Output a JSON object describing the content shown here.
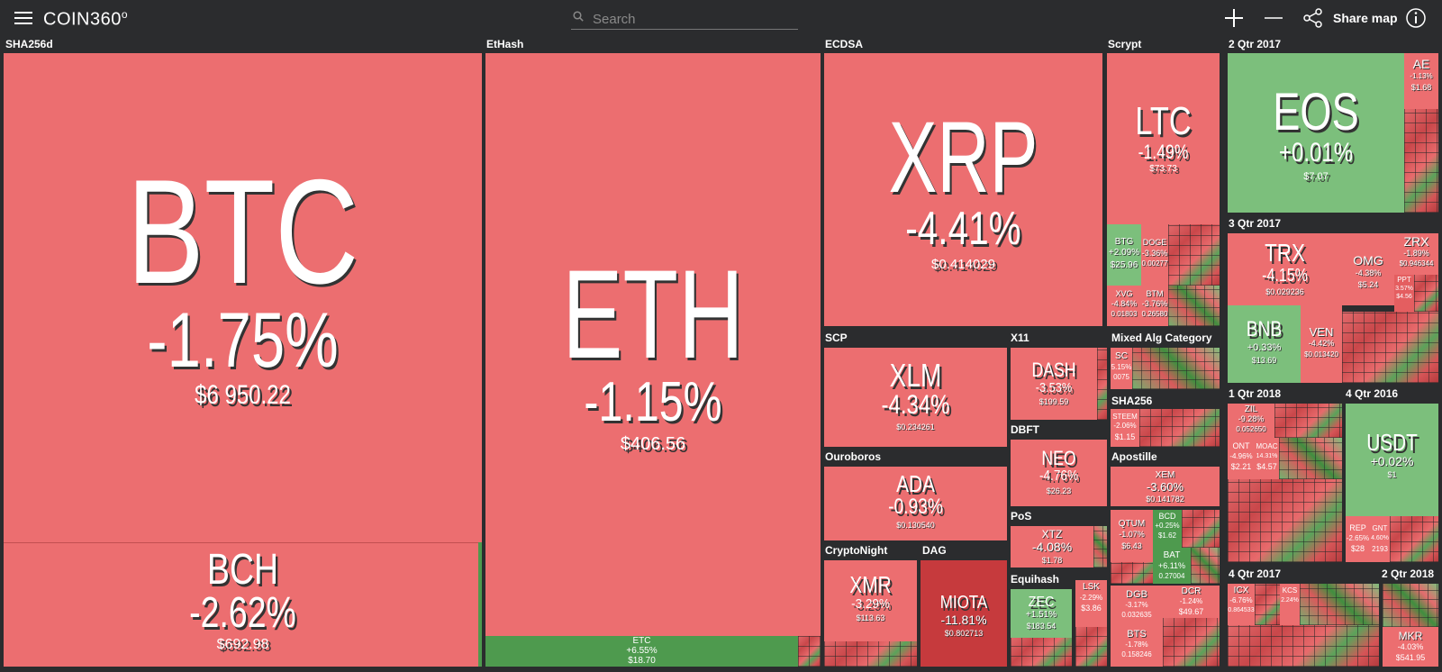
{
  "app": {
    "title": "COIN360",
    "logo_sup": "o"
  },
  "search": {
    "placeholder": "Search"
  },
  "toolbar": {
    "share_label": "Share map"
  },
  "colors": {
    "negative": "#ec6e70",
    "positive": "#7cbf7c",
    "dark_negative": "#c63a3d",
    "background": "#2b2c2e"
  },
  "groups": {
    "sha256d": "SHA256d",
    "ethash": "EtHash",
    "ecdsa": "ECDSA",
    "scrypt": "Scrypt",
    "q2_2017": "2 Qtr 2017",
    "q3_2017": "3 Qtr 2017",
    "scp": "SCP",
    "x11": "X11",
    "mixed": "Mixed Alg Category",
    "sha256": "SHA256",
    "dbft": "DBFT",
    "ouroboros": "Ouroboros",
    "apostille": "Apostille",
    "pos": "PoS",
    "q1_2018": "1 Qtr 2018",
    "q4_2016": "4 Qtr 2016",
    "cryptonight": "CryptoNight",
    "dag": "DAG",
    "equihash": "Equihash",
    "q4_2017": "4 Qtr 2017",
    "q2_2018": "2 Qtr 2018"
  },
  "coins": {
    "btc": {
      "symbol": "BTC",
      "change": "-1.75%",
      "price": "$6 950.22"
    },
    "bch": {
      "symbol": "BCH",
      "change": "-2.62%",
      "price": "$692.98"
    },
    "eth": {
      "symbol": "ETH",
      "change": "-1.15%",
      "price": "$406.56"
    },
    "etc": {
      "symbol": "ETC",
      "change": "+6.55%",
      "price": "$18.70"
    },
    "xrp": {
      "symbol": "XRP",
      "change": "-4.41%",
      "price": "$0.414029"
    },
    "ltc": {
      "symbol": "LTC",
      "change": "-1.49%",
      "price": "$73.73"
    },
    "btg": {
      "symbol": "BTG",
      "change": "+2.09%",
      "price": "$25.96"
    },
    "doge": {
      "symbol": "DOGE",
      "change": "-3.36%",
      "price": "0.00277"
    },
    "xvg": {
      "symbol": "XVG",
      "change": "-4.84%",
      "price": "0.01803"
    },
    "btm": {
      "symbol": "BTM",
      "change": "-3.76%",
      "price": "0.26580"
    },
    "eos": {
      "symbol": "EOS",
      "change": "+0.01%",
      "price": "$7.07"
    },
    "ae": {
      "symbol": "AE",
      "change": "-1.13%",
      "price": "$1.68"
    },
    "trx": {
      "symbol": "TRX",
      "change": "-4.15%",
      "price": "$0.029236"
    },
    "omg": {
      "symbol": "OMG",
      "change": "-4.38%",
      "price": "$5.24"
    },
    "zrx": {
      "symbol": "ZRX",
      "change": "-1.89%",
      "price": "$0.946344"
    },
    "ppt": {
      "symbol": "PPT",
      "change": "3.57%",
      "price": "$4.56"
    },
    "bnb": {
      "symbol": "BNB",
      "change": "+0.33%",
      "price": "$13.69"
    },
    "ven": {
      "symbol": "VEN",
      "change": "-4.42%",
      "price": "$0.013420"
    },
    "xlm": {
      "symbol": "XLM",
      "change": "-4.34%",
      "price": "$0.234261"
    },
    "dash": {
      "symbol": "DASH",
      "change": "-3.53%",
      "price": "$199.59"
    },
    "sc": {
      "symbol": "SC",
      "change": "5.15%",
      "price": "0075"
    },
    "steem": {
      "symbol": "STEEM",
      "change": "-2.06%",
      "price": "$1.15"
    },
    "ada": {
      "symbol": "ADA",
      "change": "-0.93%",
      "price": "$0.130540"
    },
    "neo": {
      "symbol": "NEO",
      "change": "-4.76%",
      "price": "$26.23"
    },
    "xem": {
      "symbol": "XEM",
      "change": "-3.60%",
      "price": "$0.141782"
    },
    "xtz": {
      "symbol": "XTZ",
      "change": "-4.08%",
      "price": "$1.78"
    },
    "qtum": {
      "symbol": "QTUM",
      "change": "-1.07%",
      "price": "$6.43"
    },
    "bcd": {
      "symbol": "BCD",
      "change": "+0.25%",
      "price": "$1.62"
    },
    "bat": {
      "symbol": "BAT",
      "change": "+6.11%",
      "price": "0.27004"
    },
    "xmr": {
      "symbol": "XMR",
      "change": "-3.29%",
      "price": "$113.63"
    },
    "miota": {
      "symbol": "MIOTA",
      "change": "-11.81%",
      "price": "$0.802713"
    },
    "zec": {
      "symbol": "ZEC",
      "change": "+1.51%",
      "price": "$183.54"
    },
    "lsk": {
      "symbol": "LSK",
      "change": "-2.29%",
      "price": "$3.86"
    },
    "dgb": {
      "symbol": "DGB",
      "change": "-3.17%",
      "price": "0.032635"
    },
    "dcr": {
      "symbol": "DCR",
      "change": "-1.24%",
      "price": "$49.67"
    },
    "bts": {
      "symbol": "BTS",
      "change": "-1.78%",
      "price": "0.158246"
    },
    "zil": {
      "symbol": "ZIL",
      "change": "-9.28%",
      "price": "0.052650"
    },
    "ont": {
      "symbol": "ONT",
      "change": "-4.96%",
      "price": "$2.21"
    },
    "moac": {
      "symbol": "MOAC",
      "change": "14.31%",
      "price": "$4.57"
    },
    "usdt": {
      "symbol": "USDT",
      "change": "+0.02%",
      "price": "$1"
    },
    "rep": {
      "symbol": "REP",
      "change": "-2.65%",
      "price": "$28"
    },
    "gnt": {
      "symbol": "GNT",
      "change": "4.60%",
      "price": "2193"
    },
    "icx": {
      "symbol": "ICX",
      "change": "-6.76%",
      "price": "0.864533"
    },
    "kcs": {
      "symbol": "KCS",
      "change": "2.24%",
      "price": ""
    },
    "mkr": {
      "symbol": "MKR",
      "change": "-4.03%",
      "price": "$541.95"
    }
  }
}
